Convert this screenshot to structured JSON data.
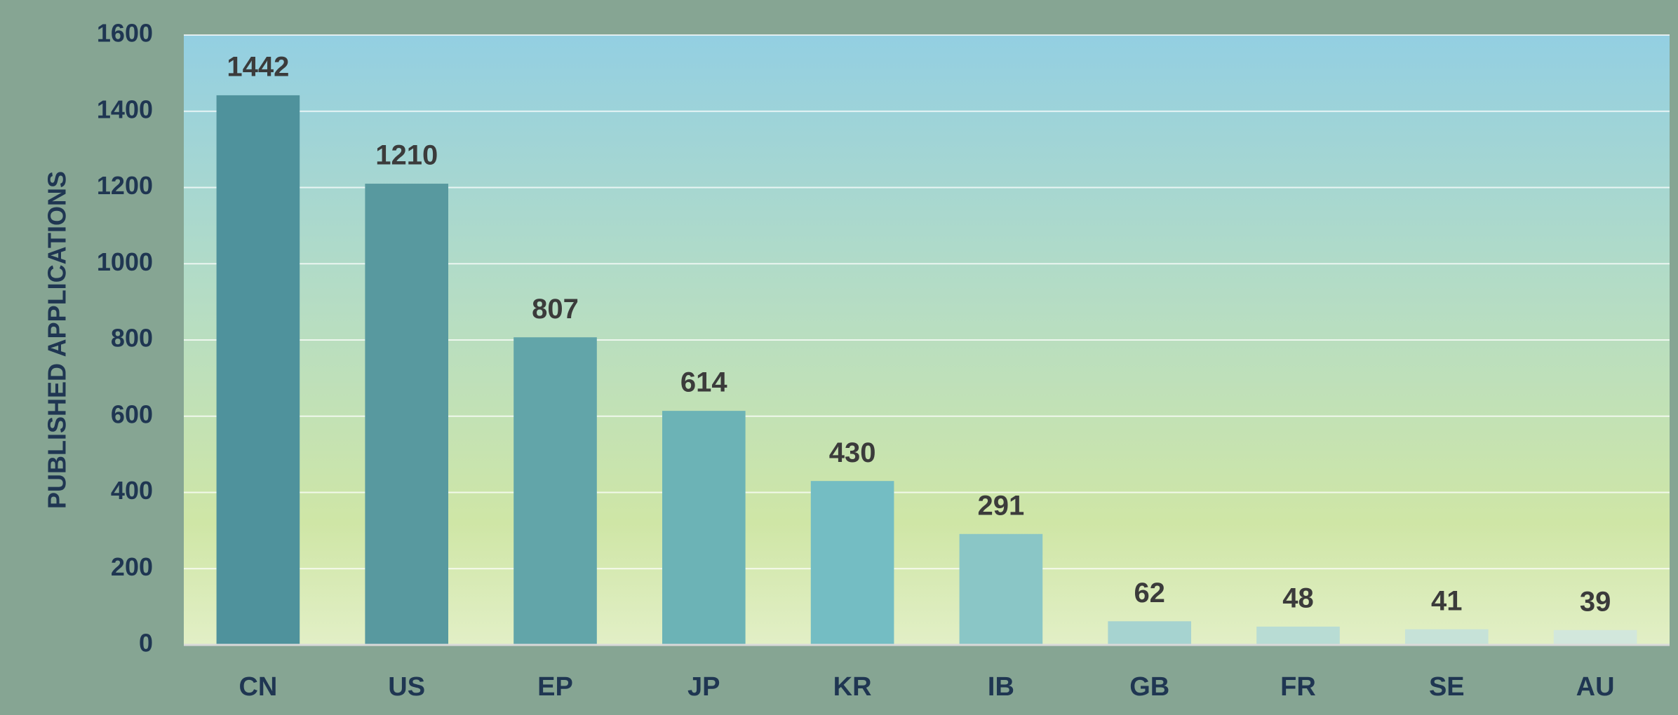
{
  "chart_data": {
    "type": "bar",
    "y_label": "PUBLISHED APPLICATIONS",
    "categories": [
      "CN",
      "US",
      "EP",
      "JP",
      "KR",
      "IB",
      "GB",
      "FR",
      "SE",
      "AU"
    ],
    "values": [
      1442,
      1210,
      807,
      614,
      430,
      291,
      62,
      48,
      41,
      39
    ],
    "colors": [
      "#4f929c",
      "#58999f",
      "#62a5a9",
      "#6cb3b6",
      "#74bdc3",
      "#8ac6c6",
      "#a6d3d0",
      "#b8dcd4",
      "#c6e2d8",
      "#d2e7dc"
    ],
    "ylim": [
      0,
      1600
    ],
    "yticks": [
      0,
      200,
      400,
      600,
      800,
      1000,
      1200,
      1400,
      1600
    ],
    "grid": true
  }
}
